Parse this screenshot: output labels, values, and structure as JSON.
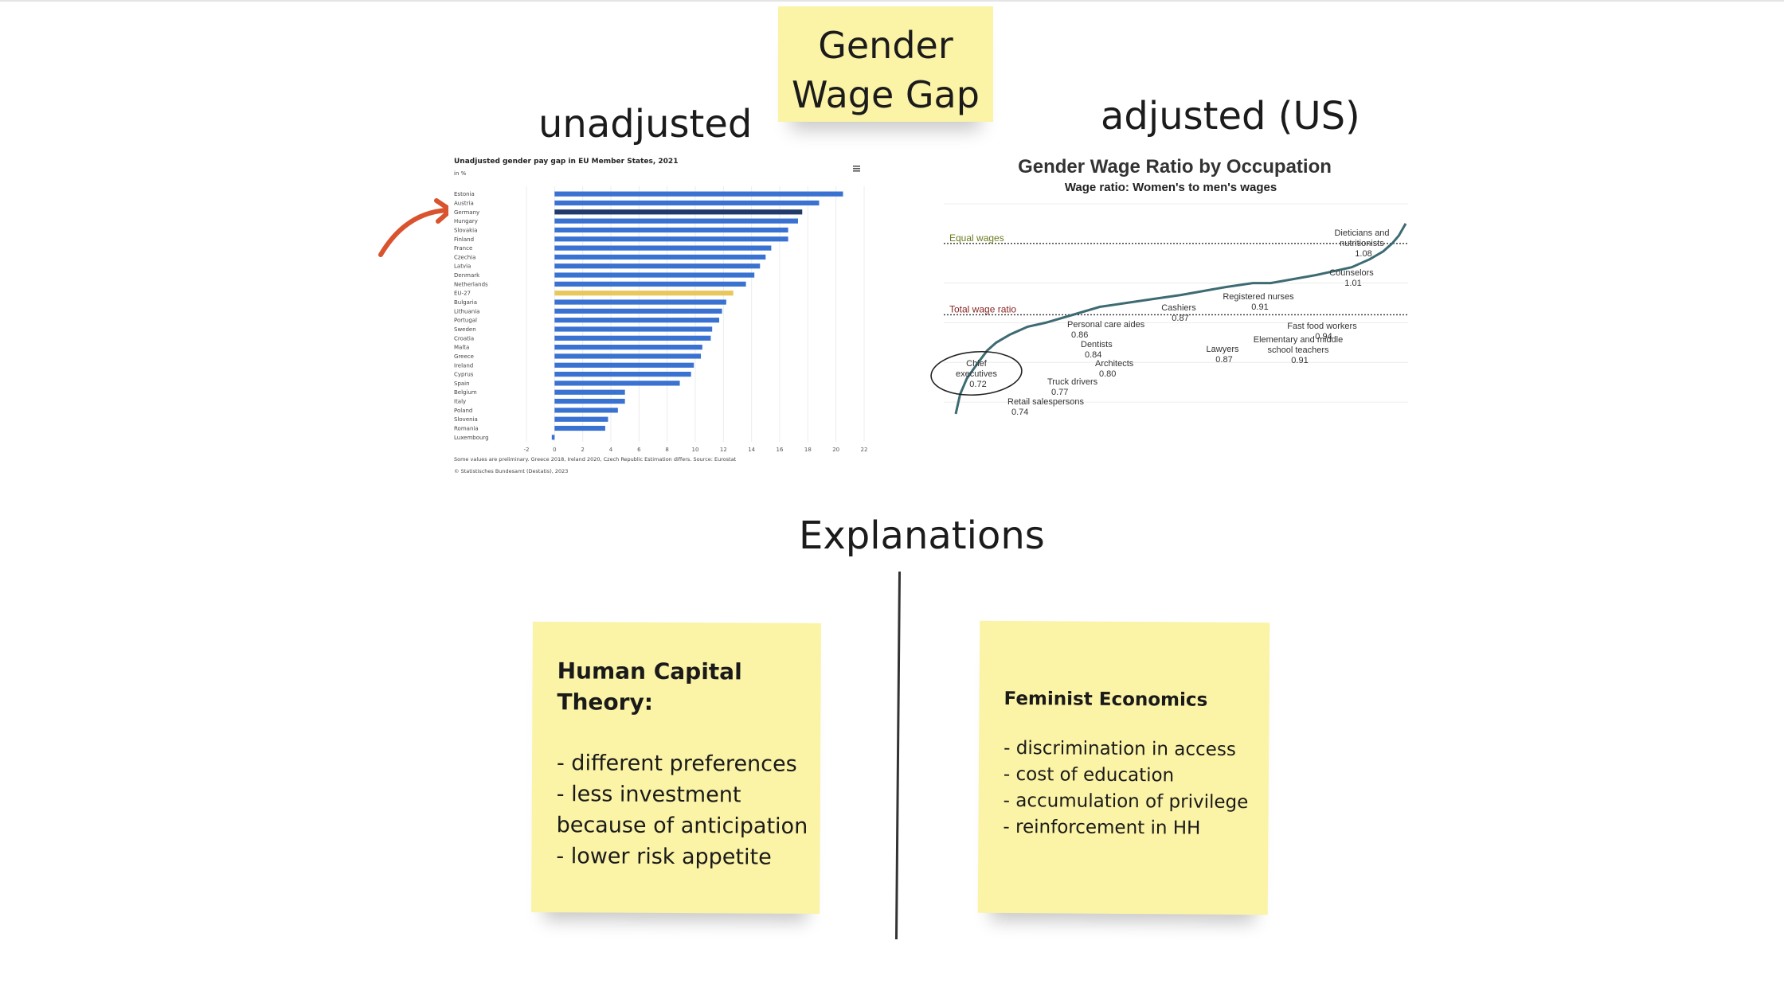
{
  "title_note": {
    "line1": "Gender",
    "line2": "Wage Gap"
  },
  "headings": {
    "unadjusted": "unadjusted",
    "adjusted": "adjusted (US)",
    "explanations": "Explanations"
  },
  "notes": {
    "human_capital": {
      "title_line1": "Human Capital",
      "title_line2": "Theory:",
      "items": [
        "- different preferences",
        "- less investment",
        "because of anticipation",
        "- lower risk appetite"
      ]
    },
    "feminist": {
      "title": "Feminist Economics",
      "items": [
        "- discrimination in access",
        "- cost of education",
        "- accumulation of privilege",
        "- reinforcement in HH"
      ]
    }
  },
  "colors": {
    "sticky_note": "#fbf3a6",
    "bar_blue": "#3a72d1",
    "bar_highlight_dark": "#1f3a6b",
    "bar_eu_average": "#e9c85b",
    "arrow": "#d9532f",
    "wage_line": "#3d6b72",
    "equal_wages_label": "#6b7a1f",
    "total_wage_label": "#8b2323"
  },
  "arrow_annotation": {
    "icon": "curved-arrow-icon",
    "points_to": "Germany"
  },
  "chart_data": [
    {
      "type": "bar",
      "orientation": "horizontal",
      "title": "Unadjusted gender pay gap in EU Member States, 2021",
      "subtitle": "in %",
      "categories": [
        "Estonia",
        "Austria",
        "Germany",
        "Hungary",
        "Slovakia",
        "Finland",
        "France",
        "Czechia",
        "Latvia",
        "Denmark",
        "Netherlands",
        "EU-27",
        "Bulgaria",
        "Lithuania",
        "Portugal",
        "Sweden",
        "Croatia",
        "Malta",
        "Greece",
        "Ireland",
        "Cyprus",
        "Spain",
        "Belgium",
        "Italy",
        "Poland",
        "Slovenia",
        "Romania",
        "Luxembourg"
      ],
      "values": [
        20.5,
        18.8,
        17.6,
        17.3,
        16.6,
        16.6,
        15.4,
        15.0,
        14.6,
        14.2,
        13.6,
        12.7,
        12.2,
        11.9,
        11.7,
        11.2,
        11.1,
        10.5,
        10.4,
        9.9,
        9.7,
        8.9,
        5.0,
        5.0,
        4.5,
        3.8,
        3.6,
        -0.2
      ],
      "highlight": {
        "Germany": "bar_highlight_dark",
        "EU-27": "bar_eu_average"
      },
      "xticks": [
        "-2",
        "0",
        "2",
        "4",
        "6",
        "8",
        "10",
        "12",
        "14",
        "16",
        "18",
        "20",
        "22"
      ],
      "xlim": [
        -2,
        22
      ],
      "grid": true,
      "footnote": "Some values are preliminary. Greece 2018, Ireland 2020, Czech Republic Estimation differs. Source: Eurostat",
      "credit": "© Statistisches Bundesamt (Destatis), 2023",
      "menu_icon": "hamburger-menu-icon"
    },
    {
      "type": "line",
      "title": "Gender Wage Ratio by Occupation",
      "subtitle": "Wage ratio: Women's to men's wages",
      "ylim": [
        0.55,
        1.12
      ],
      "reference_lines": [
        {
          "name": "Equal wages",
          "y": 1.0
        },
        {
          "name": "Total wage ratio",
          "y": 0.82
        }
      ],
      "series": [
        {
          "x": [
            0,
            0.01,
            0.025,
            0.05,
            0.07,
            0.09,
            0.12,
            0.16,
            0.2,
            0.26,
            0.32,
            0.38,
            0.44,
            0.5,
            0.55,
            0.6,
            0.66,
            0.7,
            0.75,
            0.8,
            0.84,
            0.88,
            0.92,
            0.95,
            0.97,
            0.985,
            1.0
          ],
          "y": [
            0.57,
            0.62,
            0.66,
            0.7,
            0.73,
            0.75,
            0.77,
            0.79,
            0.8,
            0.82,
            0.84,
            0.85,
            0.86,
            0.87,
            0.88,
            0.89,
            0.9,
            0.9,
            0.91,
            0.92,
            0.93,
            0.94,
            0.96,
            0.98,
            1.0,
            1.02,
            1.05
          ]
        }
      ],
      "annotations": [
        {
          "label": "Chief executives",
          "value": "0.72",
          "circled": true
        },
        {
          "label": "Retail salespersons",
          "value": "0.74"
        },
        {
          "label": "Truck drivers",
          "value": "0.77"
        },
        {
          "label": "Architects",
          "value": "0.80"
        },
        {
          "label": "Dentists",
          "value": "0.84"
        },
        {
          "label": "Personal care aides",
          "value": "0.86"
        },
        {
          "label": "Cashiers",
          "value": "0.87"
        },
        {
          "label": "Lawyers",
          "value": "0.87"
        },
        {
          "label": "Registered nurses",
          "value": "0.91"
        },
        {
          "label": "Elementary and middle school teachers",
          "value": "0.91"
        },
        {
          "label": "Fast food workers",
          "value": "0.94"
        },
        {
          "label": "Counselors",
          "value": "1.01"
        },
        {
          "label": "Dieticians and nutritionists",
          "value": "1.08"
        }
      ]
    }
  ]
}
